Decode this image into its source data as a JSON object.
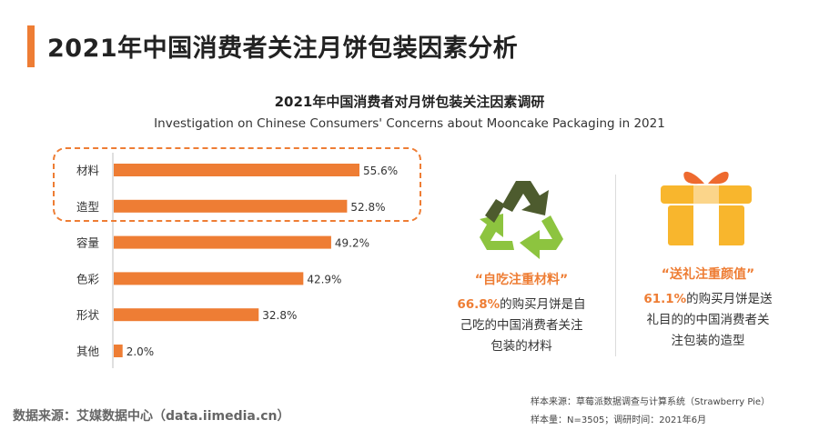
{
  "page_title": "2021年中国消费者关注月饼包装因素分析",
  "chart_data": {
    "type": "bar",
    "orientation": "horizontal",
    "title": "2021年中国消费者对月饼包装关注因素调研",
    "subtitle": "Investigation on Chinese Consumers' Concerns about Mooncake Packaging in 2021",
    "categories": [
      "材料",
      "造型",
      "容量",
      "色彩",
      "形状",
      "其他"
    ],
    "values": [
      55.6,
      52.8,
      49.2,
      42.9,
      32.8,
      2.0
    ],
    "value_suffix": "%",
    "highlighted_categories": [
      "材料",
      "造型"
    ],
    "xlim": [
      0,
      60
    ],
    "grid": false,
    "bar_color": "#ee7d34"
  },
  "panels": {
    "self_use": {
      "quote": "“自吃注重材料”",
      "percent": "66.8%",
      "text_line1": "的购买月饼是自",
      "text_line2": "己吃的中国消费者关注",
      "text_line3": "包装的材料",
      "icon": "recycle-icon"
    },
    "gift": {
      "quote": "“送礼注重颜值”",
      "percent": "61.1%",
      "text_line1": "的购买月饼是送",
      "text_line2": "礼目的的中国消费者关",
      "text_line3": "注包装的造型",
      "icon": "gift-icon"
    }
  },
  "source_left": "数据来源：艾媒数据中心（data.iimedia.cn）",
  "sample_source": "样本来源：草莓派数据调查与计算系统（Strawberry Pie）",
  "sample_size": "样本量：N=3505；调研时间：2021年6月",
  "colors": {
    "accent": "#ee7d34",
    "recycle_dark": "#4d5b2e",
    "recycle_light": "#8dc43f",
    "gift_box": "#f8b62d",
    "gift_ribbon": "#ee6a2f"
  }
}
